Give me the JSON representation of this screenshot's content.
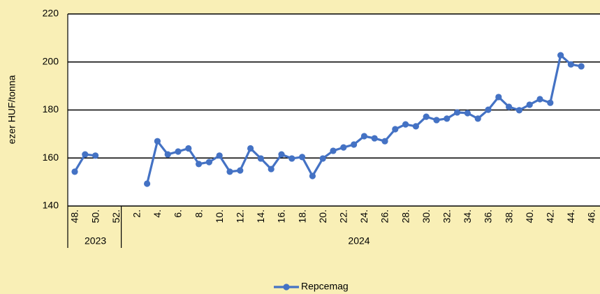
{
  "chart_data": {
    "type": "line",
    "y_label": "ezer HUF/tonna",
    "categories": [
      "48.",
      null,
      "50.",
      null,
      "52.",
      null,
      "2.",
      null,
      "4.",
      null,
      "6.",
      null,
      "8.",
      null,
      "10.",
      null,
      "12.",
      null,
      "14.",
      null,
      "16.",
      null,
      "18.",
      null,
      "20.",
      null,
      "22.",
      null,
      "24.",
      null,
      "26.",
      null,
      "28.",
      null,
      "30.",
      null,
      "32.",
      null,
      "34.",
      null,
      "36.",
      null,
      "38.",
      null,
      "40.",
      null,
      "42.",
      null,
      "44.",
      null,
      "46."
    ],
    "groups": [
      {
        "label": "2023",
        "count": 5
      },
      {
        "label": "2024",
        "count": 46
      }
    ],
    "series": [
      {
        "name": "Repcemag",
        "color": "#4472c4",
        "values": [
          154.3,
          161.5,
          161,
          null,
          null,
          null,
          null,
          149.3,
          167,
          161.5,
          162.7,
          164,
          157.5,
          158.3,
          161,
          154.3,
          154.8,
          164,
          159.8,
          155.4,
          161.5,
          159.8,
          160.4,
          152.5,
          159.8,
          163,
          164.4,
          165.6,
          169.1,
          168.2,
          167,
          172,
          174,
          173.2,
          177.2,
          175.8,
          176.4,
          179,
          178.7,
          176.4,
          180.1,
          185.4,
          181.3,
          179.9,
          182.2,
          184.5,
          183,
          202.8,
          199,
          198.2,
          null
        ]
      }
    ],
    "ylim": [
      140,
      220
    ],
    "yticks": [
      140,
      160,
      180,
      200,
      220
    ],
    "grid": true,
    "legend": "bottom"
  }
}
